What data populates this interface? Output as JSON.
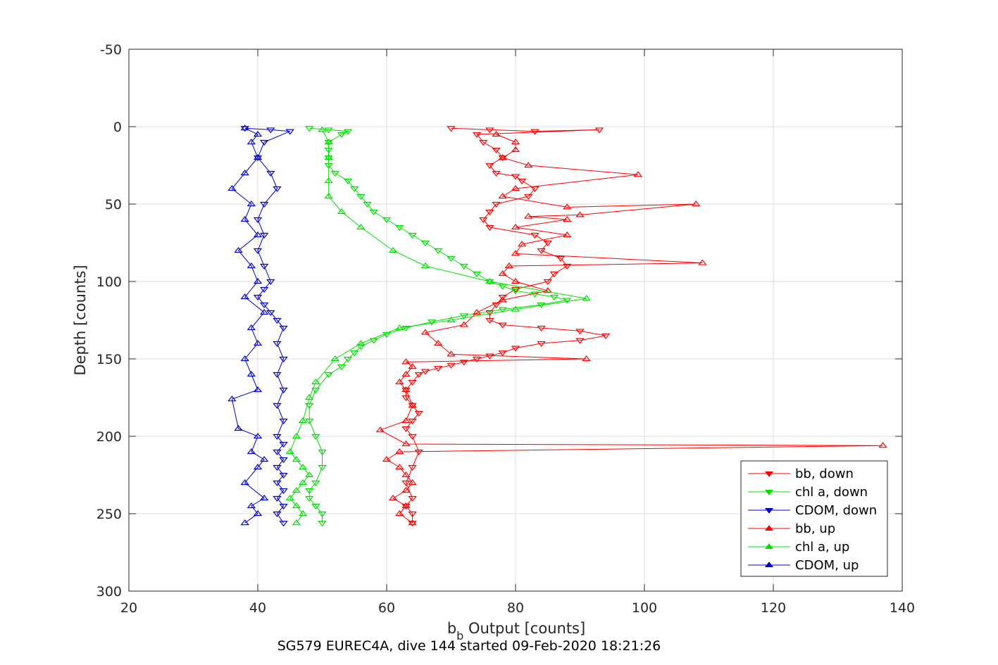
{
  "chart_data": {
    "type": "line",
    "title": "SG579 EUREC4A, dive 144 started 09-Feb-2020 18:21:26",
    "xlabel_main": "b",
    "xlabel_sub": "b",
    "xlabel_rest": " Output [counts]",
    "ylabel": "Depth [counts]",
    "xlim": [
      20,
      140
    ],
    "ylim": [
      -50,
      300
    ],
    "y_reversed": true,
    "grid": true,
    "legend_position": "bottom-right",
    "xticks": [
      "20",
      "40",
      "60",
      "80",
      "100",
      "120",
      "140"
    ],
    "yticks": [
      "-50",
      "0",
      "50",
      "100",
      "150",
      "200",
      "250",
      "300"
    ],
    "series": [
      {
        "name": "bb, down",
        "color": "#ff0000",
        "marker": "triangle-down",
        "x": [
          70,
          76,
          83,
          93,
          74,
          75,
          77,
          78,
          76,
          77,
          80,
          81,
          83,
          82,
          77,
          76,
          75,
          76,
          83,
          85,
          84,
          87,
          88,
          86,
          85,
          80,
          78,
          77,
          76,
          76,
          78,
          84,
          90,
          94,
          90,
          84,
          80,
          78,
          76,
          74,
          72,
          70,
          68,
          66,
          65,
          64,
          63,
          63,
          64,
          65,
          64,
          63,
          64,
          65,
          64,
          63,
          64,
          63,
          64,
          64
        ],
        "y": [
          1,
          2,
          3,
          2,
          5,
          10,
          15,
          20,
          25,
          30,
          32,
          35,
          40,
          45,
          50,
          55,
          60,
          65,
          70,
          75,
          80,
          85,
          90,
          95,
          100,
          105,
          110,
          115,
          120,
          125,
          128,
          130,
          132,
          135,
          138,
          140,
          143,
          146,
          148,
          150,
          152,
          154,
          156,
          158,
          160,
          165,
          170,
          175,
          180,
          185,
          190,
          195,
          200,
          210,
          220,
          230,
          240,
          245,
          250,
          256
        ]
      },
      {
        "name": "chl a, down",
        "color": "#00e000",
        "marker": "triangle-down",
        "x": [
          48,
          51,
          54,
          53,
          51,
          51,
          51,
          51,
          52,
          54,
          55,
          56,
          57,
          58,
          60,
          62,
          64,
          66,
          68,
          70,
          72,
          74,
          76,
          78,
          80,
          83,
          86,
          88,
          84,
          78,
          72,
          67,
          63,
          60,
          58,
          56,
          55,
          54,
          53,
          51,
          49,
          48,
          48,
          49,
          50,
          50,
          49,
          48,
          48,
          49,
          50,
          50
        ],
        "y": [
          1,
          2,
          3,
          5,
          10,
          15,
          20,
          25,
          30,
          35,
          40,
          45,
          50,
          55,
          60,
          65,
          70,
          75,
          80,
          85,
          90,
          95,
          100,
          103,
          106,
          108,
          110,
          112,
          115,
          118,
          122,
          126,
          130,
          134,
          138,
          142,
          146,
          150,
          155,
          160,
          170,
          180,
          190,
          200,
          210,
          220,
          230,
          235,
          240,
          245,
          250,
          256
        ]
      },
      {
        "name": "CDOM, down",
        "color": "#0000cc",
        "marker": "triangle-down",
        "x": [
          38,
          42,
          45,
          41,
          40,
          42,
          43,
          41,
          40,
          41,
          40,
          41,
          42,
          41,
          40,
          41,
          42,
          43,
          44,
          43,
          44,
          43,
          44,
          43,
          44,
          43,
          44,
          43,
          44,
          43,
          44,
          43,
          44,
          43,
          44,
          43,
          44
        ],
        "y": [
          1,
          2,
          3,
          10,
          20,
          30,
          40,
          50,
          60,
          70,
          80,
          90,
          100,
          105,
          110,
          115,
          120,
          125,
          130,
          140,
          150,
          160,
          170,
          180,
          190,
          200,
          205,
          210,
          215,
          220,
          225,
          230,
          235,
          240,
          245,
          250,
          256
        ]
      },
      {
        "name": "bb, up",
        "color": "#ff0000",
        "marker": "triangle-up",
        "x": [
          64,
          62,
          63,
          61,
          63,
          64,
          63,
          62,
          60,
          62,
          137,
          63,
          59,
          63,
          64,
          63,
          62,
          63,
          64,
          63,
          91,
          70,
          68,
          66,
          72,
          74,
          78,
          85,
          80,
          78,
          79,
          109,
          80,
          81,
          88,
          80,
          88,
          82,
          90,
          108,
          88,
          78,
          80,
          99,
          82,
          78,
          80,
          80,
          77
        ],
        "y": [
          256,
          250,
          245,
          240,
          235,
          230,
          225,
          220,
          215,
          210,
          206,
          205,
          196,
          190,
          180,
          170,
          165,
          160,
          155,
          152,
          150,
          147,
          140,
          133,
          128,
          120,
          112,
          106,
          100,
          95,
          90,
          88,
          82,
          76,
          70,
          65,
          60,
          58,
          57,
          50,
          52,
          45,
          40,
          31,
          25,
          20,
          15,
          10,
          5
        ]
      },
      {
        "name": "chl a, up",
        "color": "#00e000",
        "marker": "triangle-up",
        "x": [
          46,
          47,
          46,
          45,
          46,
          47,
          48,
          47,
          46,
          45,
          46,
          47,
          48,
          49,
          52,
          56,
          62,
          70,
          80,
          91,
          76,
          66,
          61,
          56,
          53,
          51,
          51,
          51,
          51,
          50
        ],
        "y": [
          256,
          250,
          245,
          240,
          235,
          230,
          225,
          220,
          215,
          210,
          200,
          190,
          175,
          165,
          150,
          140,
          130,
          125,
          118,
          111,
          100,
          90,
          80,
          65,
          55,
          45,
          35,
          20,
          10,
          2
        ]
      },
      {
        "name": "CDOM, up",
        "color": "#0000cc",
        "marker": "triangle-up",
        "x": [
          38,
          40,
          39,
          41,
          38,
          40,
          41,
          39,
          40,
          37,
          36,
          40,
          39,
          38,
          40,
          39,
          41,
          38,
          40,
          39,
          37,
          40,
          38,
          39,
          36,
          38,
          40,
          39,
          40,
          38
        ],
        "y": [
          256,
          250,
          245,
          240,
          230,
          220,
          215,
          210,
          200,
          195,
          176,
          170,
          160,
          150,
          140,
          130,
          120,
          110,
          100,
          90,
          80,
          70,
          60,
          50,
          40,
          30,
          20,
          10,
          5,
          1
        ]
      }
    ]
  }
}
